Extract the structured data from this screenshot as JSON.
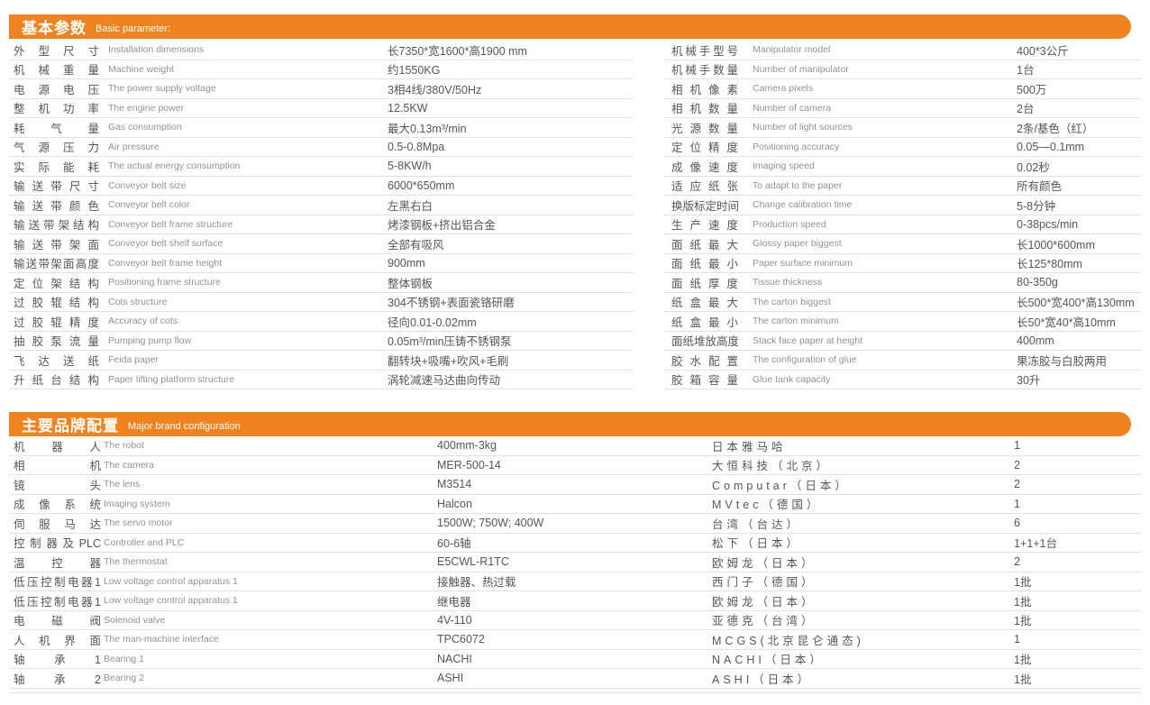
{
  "page": {
    "background": "#ffffff",
    "accent_color": "#EF8320",
    "text_color": "#54565a",
    "muted_text_color": "#909296"
  },
  "section1": {
    "title_cn": "基本参数",
    "title_en": "Basic parameter:",
    "left_rows": [
      {
        "cn": "外型尺寸",
        "en": "Installation dimensions",
        "value": "长7350*宽1600*高1900 mm"
      },
      {
        "cn": "机械重量",
        "en": "Machine weight",
        "value": "约1550KG"
      },
      {
        "cn": "电源电压",
        "en": "The power supply voltage",
        "value": "3相4线/380V/50Hz"
      },
      {
        "cn": "整机功率",
        "en": "The engine power",
        "value": "12.5KW"
      },
      {
        "cn": "耗气量",
        "en": "Gas consumption",
        "value": "最大0.13m³/min"
      },
      {
        "cn": "气源压力",
        "en": "Air pressure",
        "value": "0.5-0.8Mpa"
      },
      {
        "cn": "实际能耗",
        "en": "The actual energy consumption",
        "value": "5-8KW/h"
      },
      {
        "cn": "输送带尺寸",
        "en": "Conveyor belt size",
        "value": "6000*650mm"
      },
      {
        "cn": "输送带颜色",
        "en": "Conveyor belt color",
        "value": "左黑右白"
      },
      {
        "cn": "输送带架结构",
        "en": "Conveyor belt frame structure",
        "value": "烤漆钢板+挤出铝合金"
      },
      {
        "cn": "输送带架面",
        "en": "Conveyor belt shelf surface",
        "value": "全部有吸风"
      },
      {
        "cn": "输送带架面高度",
        "en": "Conveyor belt frame height",
        "value": "900mm"
      },
      {
        "cn": "定位架结构",
        "en": "Positioning frame structure",
        "value": "整体钢板"
      },
      {
        "cn": "过胶辊结构",
        "en": "Cots structure",
        "value": "304不锈钢+表面瓷铬研磨"
      },
      {
        "cn": "过胶辊精度",
        "en": "Accuracy of cots",
        "value": "径向0.01-0.02mm"
      },
      {
        "cn": "抽胶泵流量",
        "en": "Pumping pump flow",
        "value": "0.05m³/min压铸不锈钢泵"
      },
      {
        "cn": "飞达送纸",
        "en": "Feida paper",
        "value": "翻转块+吸嘴+吹风+毛刷"
      },
      {
        "cn": "升纸台结构",
        "en": "Paper lifting platform structure",
        "value": "涡轮减速马达曲向传动"
      }
    ],
    "right_rows": [
      {
        "cn": "机械手型号",
        "en": "Manipulator model",
        "value": "400*3公斤"
      },
      {
        "cn": "机械手数量",
        "en": "Number of manipulator",
        "value": "1台"
      },
      {
        "cn": "相机像素",
        "en": "Camera pixels",
        "value": "500万"
      },
      {
        "cn": "相机数量",
        "en": "Number of camera",
        "value": "2台"
      },
      {
        "cn": "光源数量",
        "en": "Number of light sources",
        "value": "2条/基色（红）"
      },
      {
        "cn": "定位精度",
        "en": "Positioning accuracy",
        "value": "0.05—0.1mm"
      },
      {
        "cn": "成像速度",
        "en": "Imaging speed",
        "value": "0.02秒"
      },
      {
        "cn": "适应纸张",
        "en": "To adapt to the paper",
        "value": "所有颜色"
      },
      {
        "cn": "换版标定时间",
        "en": "Change calibration time",
        "value": "5-8分钟"
      },
      {
        "cn": "生产速度",
        "en": "Production speed",
        "value": "0-38pcs/min"
      },
      {
        "cn": "面纸最大",
        "en": "Glossy paper biggest",
        "value": "长1000*600mm"
      },
      {
        "cn": "面纸最小",
        "en": "Paper surface minimum",
        "value": "长125*80mm"
      },
      {
        "cn": "面纸厚度",
        "en": "Tissue thickness",
        "value": "80-350g"
      },
      {
        "cn": "纸盒最大",
        "en": "The carton biggest",
        "value": "长500*宽400*高130mm"
      },
      {
        "cn": "纸盒最小",
        "en": "The carton minimum",
        "value": "长50*宽40*高10mm"
      },
      {
        "cn": "面纸堆放高度",
        "en": "Stack face paper at height",
        "value": "400mm"
      },
      {
        "cn": "胶水配置",
        "en": "The configuration of glue",
        "value": "果冻胶与白胶两用"
      },
      {
        "cn": "胶箱容量",
        "en": "Glue tank capacity",
        "value": "30升"
      }
    ]
  },
  "section2": {
    "title_cn": "主要品牌配置",
    "title_en": "Major brand configuration",
    "rows": [
      {
        "cn": "机器人",
        "en": "The robot",
        "model": "400mm-3kg",
        "brand": "日本雅马哈",
        "qty": "1"
      },
      {
        "cn": "相机",
        "en": "The camera",
        "model": "MER-500-14",
        "brand": "大恒科技（北京）",
        "qty": "2"
      },
      {
        "cn": "镜头",
        "en": "The lens",
        "model": "M3514",
        "brand": "Computar（日本）",
        "qty": "2"
      },
      {
        "cn": "成像系统",
        "en": "Imaging system",
        "model": "Halcon",
        "brand": "MVtec（德国）",
        "qty": "1"
      },
      {
        "cn": "伺服马达",
        "en": "The servo motor",
        "model": "1500W; 750W; 400W",
        "brand": "台湾（台达）",
        "qty": "6"
      },
      {
        "cn": "控制器及PLC",
        "en": "Controller and PLC",
        "model": "60-6轴",
        "brand": "松下（日本）",
        "qty": "1+1+1台"
      },
      {
        "cn": "温控器",
        "en": "The thermostat",
        "model": "E5CWL-R1TC",
        "brand": "欧姆龙（日本）",
        "qty": "2"
      },
      {
        "cn": "低压控制电器1",
        "en": "Low voltage control apparatus 1",
        "model": "接触器、热过载",
        "brand": "西门子（德国）",
        "qty": "1批"
      },
      {
        "cn": "低压控制电器1",
        "en": "Low voltage control apparatus 1",
        "model": "继电器",
        "brand": "欧姆龙（日本）",
        "qty": "1批"
      },
      {
        "cn": "电磁阀",
        "en": "Solenoid valve",
        "model": "4V-110",
        "brand": "亚德克（台湾）",
        "qty": "1批"
      },
      {
        "cn": "人机界面",
        "en": "The man-machine interface",
        "model": "TPC6072",
        "brand": "MCGS(北京昆仑通态)",
        "qty": "1"
      },
      {
        "cn": "轴承1",
        "en": "Bearing 1",
        "model": "NACHI",
        "brand": "NACHI（日本）",
        "qty": "1批"
      },
      {
        "cn": "轴承2",
        "en": "Bearing 2",
        "model": "ASHI",
        "brand": "ASHI（日本）",
        "qty": "1批"
      }
    ]
  }
}
